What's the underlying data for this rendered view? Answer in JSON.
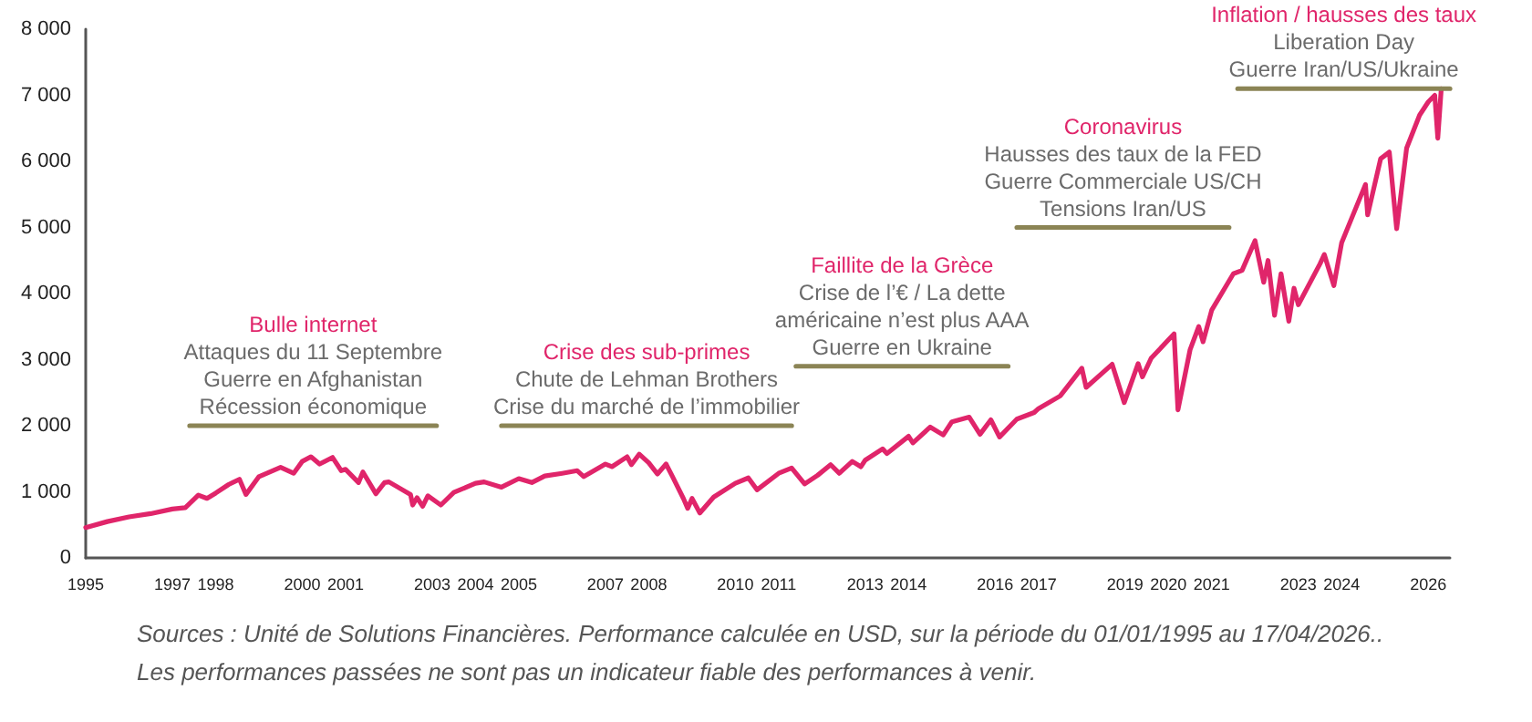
{
  "chart_data": {
    "type": "line",
    "marker": "none",
    "grid": false,
    "xlim": [
      1995,
      2026.5
    ],
    "ylim": [
      0,
      8000
    ],
    "xticks": [
      1995,
      1997,
      1998,
      2000,
      2001,
      2003,
      2004,
      2005,
      2007,
      2008,
      2010,
      2011,
      2013,
      2014,
      2016,
      2017,
      2019,
      2020,
      2021,
      2023,
      2024,
      2026
    ],
    "yticks": [
      0,
      {
        "value": 1000,
        "label": "1 000"
      },
      {
        "value": 2000,
        "label": "2 000"
      },
      {
        "value": 3000,
        "label": "3 000"
      },
      {
        "value": 4000,
        "label": "4 000"
      },
      {
        "value": 5000,
        "label": "5 000"
      },
      {
        "value": 6000,
        "label": "6 000"
      },
      {
        "value": 7000,
        "label": "7 000"
      },
      {
        "value": 8000,
        "label": "8 000"
      }
    ],
    "series": [
      {
        "color": "#e0256a",
        "x": [
          1995,
          1995.5,
          1996,
          1996.5,
          1997,
          1997.3,
          1997.6,
          1997.8,
          1998,
          1998.3,
          1998.55,
          1998.7,
          1999,
          1999.5,
          1999.8,
          2000,
          2000.2,
          2000.4,
          2000.7,
          2000.9,
          2001,
          2001.3,
          2001.4,
          2001.7,
          2001.9,
          2002,
          2002.5,
          2002.55,
          2002.65,
          2002.78,
          2002.9,
          2003.2,
          2003.5,
          2004,
          2004.2,
          2004.6,
          2005,
          2005.3,
          2005.6,
          2006,
          2006.35,
          2006.5,
          2007,
          2007.15,
          2007.5,
          2007.6,
          2007.78,
          2008,
          2008.2,
          2008.4,
          2008.55,
          2008.8,
          2008.9,
          2009,
          2009.18,
          2009.5,
          2010,
          2010.3,
          2010.5,
          2011,
          2011.3,
          2011.6,
          2011.9,
          2012.2,
          2012.4,
          2012.7,
          2012.9,
          2013,
          2013.4,
          2013.5,
          2014,
          2014.1,
          2014.5,
          2014.8,
          2015,
          2015.4,
          2015.65,
          2015.9,
          2016.1,
          2016.5,
          2016.9,
          2017,
          2017.5,
          2018,
          2018.1,
          2018.7,
          2018.98,
          2019.3,
          2019.4,
          2019.6,
          2020,
          2020.13,
          2020.22,
          2020.5,
          2020.7,
          2020.8,
          2021,
          2021.5,
          2021.7,
          2022,
          2022.2,
          2022.3,
          2022.45,
          2022.6,
          2022.78,
          2022.9,
          2023,
          2023.5,
          2023.6,
          2023.82,
          2024,
          2024.3,
          2024.55,
          2024.6,
          2024.9,
          2025.1,
          2025.27,
          2025.5,
          2025.8,
          2026,
          2026.15,
          2026.22,
          2026.3
        ],
        "values": [
          460,
          550,
          620,
          670,
          740,
          760,
          950,
          900,
          980,
          1110,
          1190,
          960,
          1230,
          1370,
          1280,
          1460,
          1530,
          1420,
          1520,
          1320,
          1340,
          1140,
          1300,
          970,
          1140,
          1150,
          960,
          800,
          910,
          780,
          940,
          800,
          990,
          1130,
          1150,
          1070,
          1200,
          1140,
          1240,
          1280,
          1320,
          1230,
          1420,
          1380,
          1530,
          1410,
          1570,
          1440,
          1270,
          1420,
          1230,
          900,
          750,
          900,
          680,
          920,
          1130,
          1210,
          1030,
          1280,
          1360,
          1120,
          1250,
          1410,
          1280,
          1460,
          1380,
          1480,
          1650,
          1580,
          1840,
          1740,
          1980,
          1860,
          2060,
          2130,
          1870,
          2090,
          1830,
          2100,
          2200,
          2260,
          2450,
          2870,
          2580,
          2930,
          2350,
          2940,
          2740,
          3020,
          3300,
          3390,
          2240,
          3150,
          3500,
          3270,
          3750,
          4300,
          4350,
          4800,
          4170,
          4500,
          3670,
          4300,
          3580,
          4080,
          3830,
          4450,
          4590,
          4120,
          4770,
          5250,
          5650,
          5190,
          6040,
          6140,
          4980,
          6200,
          6700,
          6900,
          7000,
          6350,
          7100
        ]
      },
      {
        "color": "#8b8455",
        "x": [
          1997.4,
          2003.1
        ],
        "values": [
          2000,
          2000
        ]
      },
      {
        "color": "#8b8455",
        "x": [
          2004.6,
          2011.3
        ],
        "values": [
          2000,
          2000
        ]
      },
      {
        "color": "#8b8455",
        "x": [
          2011.4,
          2016.3
        ],
        "values": [
          2900,
          2900
        ]
      },
      {
        "color": "#8b8455",
        "x": [
          2016.5,
          2021.4
        ],
        "values": [
          5000,
          5000
        ]
      },
      {
        "color": "#8b8455",
        "x": [
          2021.6,
          2026.5
        ],
        "values": [
          7100,
          7100
        ]
      }
    ],
    "annotations": [
      {
        "text": "Bulle internet\nAttaques du 11 Septembre\nGuerre en Afghanistan\nRécession économique",
        "x": 2000.25,
        "y": 2000
      },
      {
        "text": "Crise des sub-primes\nChute de Lehman Brothers\nCrise du marché de l’immobilier",
        "x": 2007.95,
        "y": 2000
      },
      {
        "text": "Faillite de la Grèce\nCrise de l’€ / La dette\naméricaine n’est plus AAA\nGuerre en Ukraine",
        "x": 2013.85,
        "y": 2900
      },
      {
        "text": "Coronavirus\nHausses des taux de la FED\nGuerre Commerciale US/CH\nTensions Iran/US",
        "x": 2018.95,
        "y": 5000
      },
      {
        "text": "Inflation / hausses des taux\nLiberation Day\nGuerre Iran/US/Ukraine",
        "x": 2024.05,
        "y": 7100
      },
      "Sources : Unité de Solutions Financières. Performance calculée en USD, sur la période du 01/01/1995 au 17/04/2026.. Les performances passées ne sont pas un indicateur fiable des performances à venir."
    ]
  }
}
